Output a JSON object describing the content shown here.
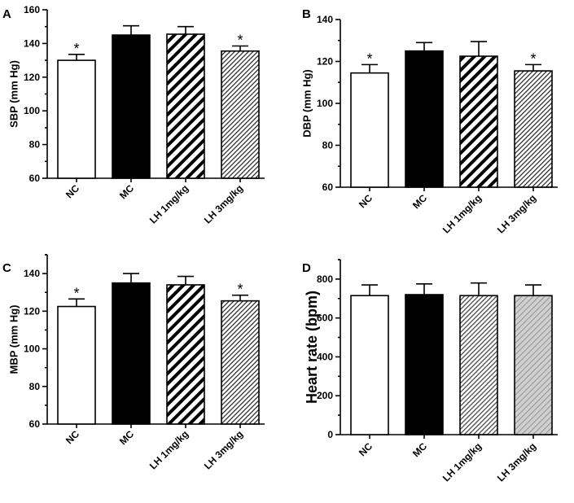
{
  "chart_data": [
    {
      "type": "bar",
      "panel": "A",
      "ylabel": "SBP (mm Hg)",
      "categories": [
        "NC",
        "MC",
        "LH 1mg/kg",
        "LH 3mg/kg"
      ],
      "values": [
        130,
        145,
        145.5,
        135.5
      ],
      "errors": [
        3.5,
        5.5,
        4.5,
        3
      ],
      "significance": [
        "*",
        "",
        "",
        "*"
      ],
      "fills": [
        "white",
        "black",
        "hatch-bold",
        "hatch-fine"
      ],
      "ylim": [
        60,
        160
      ],
      "yticks": [
        60,
        80,
        100,
        120,
        140,
        160
      ]
    },
    {
      "type": "bar",
      "panel": "B",
      "ylabel": "DBP (mm Hg)",
      "categories": [
        "NC",
        "MC",
        "LH 1mg/kg",
        "LH 3mg/kg"
      ],
      "values": [
        114.5,
        125,
        122.5,
        115.5
      ],
      "errors": [
        4,
        4,
        7,
        3
      ],
      "significance": [
        "*",
        "",
        "",
        "*"
      ],
      "fills": [
        "white",
        "black",
        "hatch-bold",
        "hatch-fine"
      ],
      "ylim": [
        60,
        140
      ],
      "yticks": [
        60,
        80,
        100,
        120,
        140
      ]
    },
    {
      "type": "bar",
      "panel": "C",
      "ylabel": "MBP (mm Hg)",
      "categories": [
        "NC",
        "MC",
        "LH 1mg/kg",
        "LH 3mg/kg"
      ],
      "values": [
        122.5,
        135,
        134,
        125.5
      ],
      "errors": [
        4,
        5,
        4.5,
        3
      ],
      "significance": [
        "*",
        "",
        "",
        "*"
      ],
      "fills": [
        "white",
        "black",
        "hatch-bold",
        "hatch-fine"
      ],
      "ylim": [
        60,
        150
      ],
      "yticks": [
        60,
        80,
        100,
        120,
        140
      ]
    },
    {
      "type": "bar",
      "panel": "D",
      "ylabel": "Heart rate (bpm)",
      "categories": [
        "NC",
        "MC",
        "LH 1mg/kg",
        "LH 3mg/kg"
      ],
      "values": [
        715,
        720,
        715,
        715
      ],
      "errors": [
        55,
        55,
        65,
        55
      ],
      "significance": [
        "",
        "",
        "",
        ""
      ],
      "fills": [
        "white",
        "black",
        "hatch-grey-fine",
        "hatch-grey"
      ],
      "ylim": [
        0,
        900
      ],
      "yticks": [
        0,
        200,
        400,
        600,
        800
      ]
    }
  ]
}
